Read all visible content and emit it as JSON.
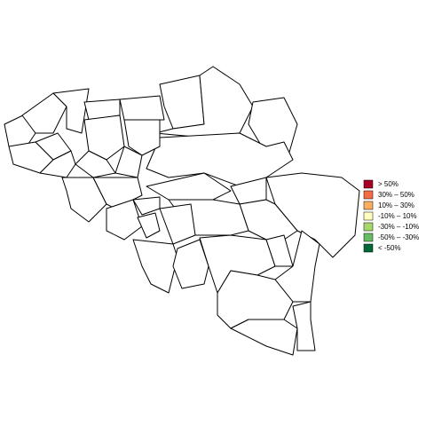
{
  "legend": {
    "items": [
      {
        "label": "> 50%",
        "color": "#a50026"
      },
      {
        "label": "30% – 50%",
        "color": "#f46d43"
      },
      {
        "label": "10% – 30%",
        "color": "#fdae61"
      },
      {
        "label": "-10% – 10%",
        "color": "#ffffbf"
      },
      {
        "label": "-30% – -10%",
        "color": "#a6d96a"
      },
      {
        "label": "-50% – -30%",
        "color": "#66bd63"
      },
      {
        "label": "< -50%",
        "color": "#006837"
      }
    ]
  }
}
